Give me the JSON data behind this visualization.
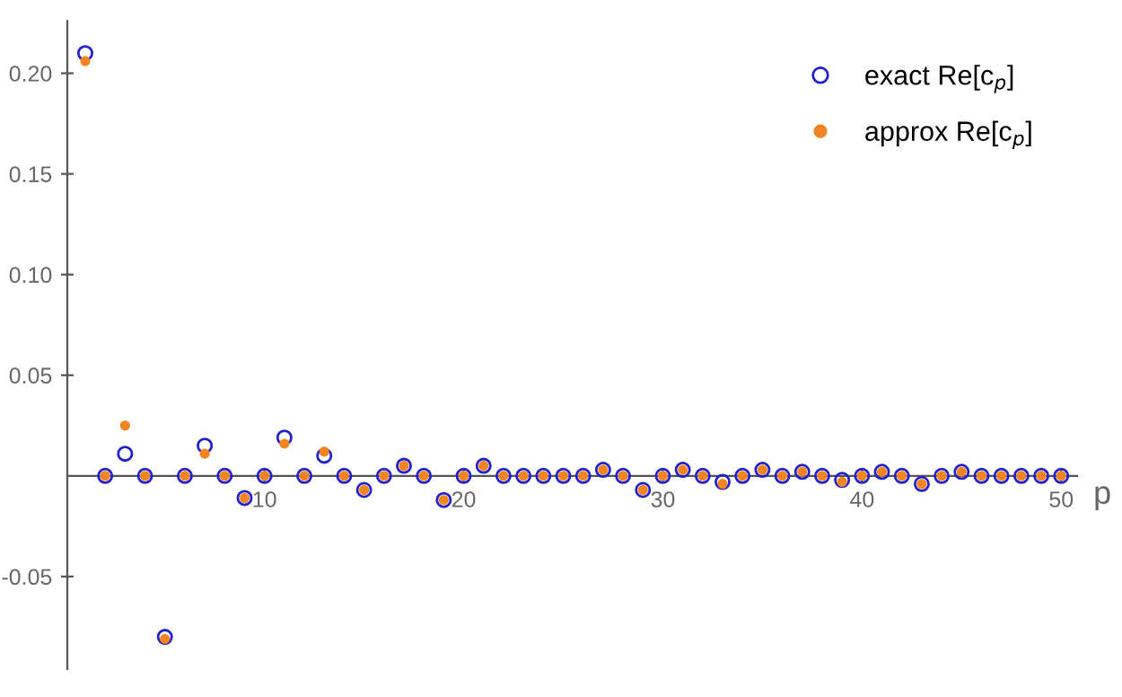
{
  "chart_data": {
    "type": "scatter",
    "xlabel": "p",
    "x": [
      1,
      2,
      3,
      4,
      5,
      6,
      7,
      8,
      9,
      10,
      11,
      12,
      13,
      14,
      15,
      16,
      17,
      18,
      19,
      20,
      21,
      22,
      23,
      24,
      25,
      26,
      27,
      28,
      29,
      30,
      31,
      32,
      33,
      34,
      35,
      36,
      37,
      38,
      39,
      40,
      41,
      42,
      43,
      44,
      45,
      46,
      47,
      48,
      49,
      50
    ],
    "series": [
      {
        "name": "exact Re[c$_{p}$]",
        "color": "#2222cc",
        "marker": "circle",
        "values": [
          0.21,
          0,
          0.011,
          0,
          -0.08,
          0,
          0.015,
          0,
          -0.011,
          0,
          0.019,
          0,
          0.01,
          0,
          -0.007,
          0,
          0.005,
          0,
          -0.012,
          0,
          0.005,
          0,
          0,
          0,
          0,
          0,
          0.003,
          0,
          -0.007,
          0,
          0.003,
          0,
          -0.003,
          0,
          0.003,
          0,
          0.002,
          0,
          -0.002,
          0,
          0.002,
          0,
          -0.004,
          0,
          0.002,
          0,
          0,
          0,
          0,
          0
        ]
      },
      {
        "name": "approx Re[c$_{p}$]",
        "color": "#f28522",
        "marker": "circle",
        "values": [
          0.206,
          0,
          0.025,
          0,
          -0.081,
          0,
          0.011,
          0,
          -0.011,
          0,
          0.016,
          0,
          0.012,
          0,
          -0.007,
          0,
          0.005,
          0,
          -0.012,
          0,
          0.005,
          0,
          0,
          0,
          0,
          0,
          0.003,
          0,
          -0.007,
          0,
          0.003,
          0,
          -0.004,
          0,
          0.003,
          0,
          0.002,
          0,
          -0.003,
          0,
          0.002,
          0,
          -0.004,
          0,
          0.002,
          0,
          0,
          0,
          0,
          0
        ]
      }
    ],
    "xlim": [
      0.1,
      50.8
    ],
    "ylim": [
      -0.096,
      0.226
    ],
    "xticks": [
      10,
      20,
      30,
      40,
      50
    ],
    "yticks": [
      -0.05,
      0.05,
      {
        "value": 0.1,
        "label": "0.10"
      },
      0.15,
      {
        "value": 0.2,
        "label": "0.20"
      }
    ],
    "grid": false,
    "legend": "top right"
  }
}
